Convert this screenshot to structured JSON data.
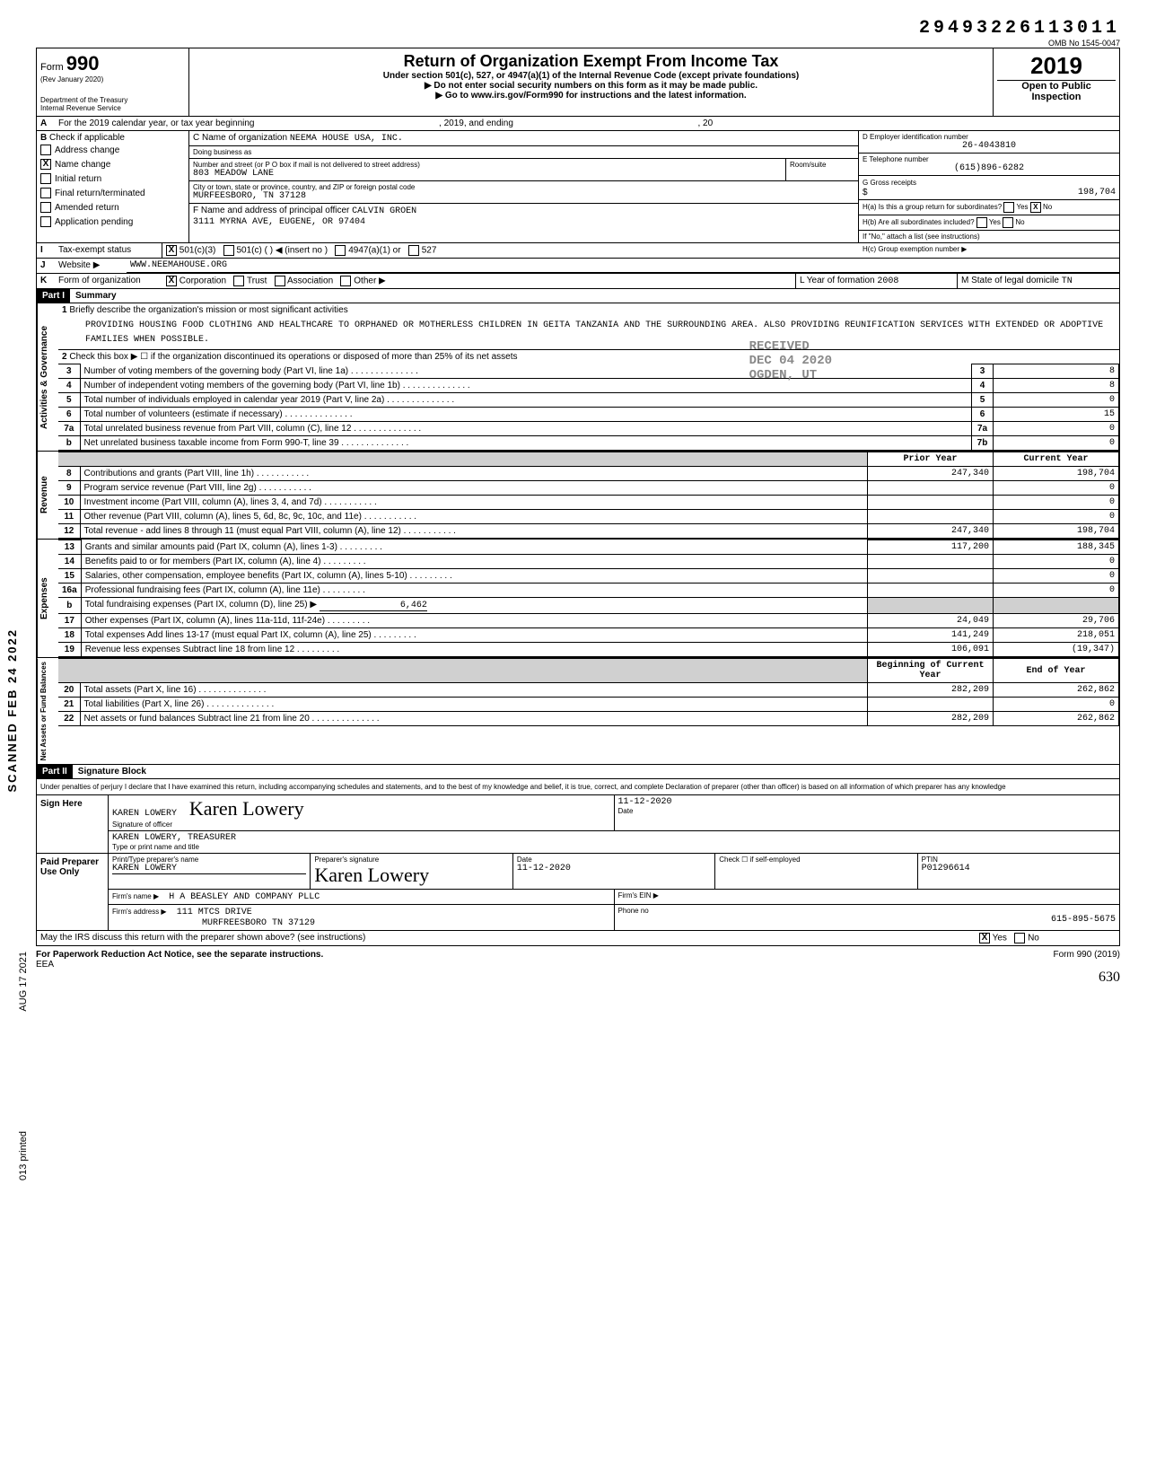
{
  "top_number": "29493226113011",
  "omb": "OMB No 1545-0047",
  "form_label": "Form",
  "form_number": "990",
  "rev": "(Rev January 2020)",
  "dept": "Department of the Treasury",
  "irs": "Internal Revenue Service",
  "main_title": "Return of Organization Exempt From Income Tax",
  "subtitle1": "Under section 501(c), 527, or 4947(a)(1) of the Internal Revenue Code (except private foundations)",
  "subtitle2": "▶ Do not enter social security numbers on this form as it may be made public.",
  "subtitle3": "▶ Go to www.irs.gov/Form990 for instructions and the latest information.",
  "year": "2019",
  "open_public": "Open to Public",
  "inspection": "Inspection",
  "A_line": "For the 2019 calendar year, or tax year beginning",
  "A_mid": ", 2019, and ending",
  "A_end": ", 20",
  "B_label": "Check if applicable",
  "B_items": [
    "Address change",
    "Name change",
    "Initial return",
    "Final return/terminated",
    "Amended return",
    "Application pending"
  ],
  "B_checked": [
    false,
    true,
    false,
    false,
    false,
    false
  ],
  "C_label": "C Name of organization",
  "C_name": "NEEMA HOUSE USA, INC.",
  "dba": "Doing business as",
  "addr_label": "Number and street (or P O box if mail is not delivered to street address)",
  "addr": "803 MEADOW LANE",
  "room": "Room/suite",
  "city_label": "City or town, state or province, country, and ZIP or foreign postal code",
  "city": "MURFEESBORO, TN 37128",
  "F_label": "F Name and address of principal officer",
  "F_name": "CALVIN GROEN",
  "F_addr": "3111 MYRNA AVE, EUGENE, OR 97404",
  "D_label": "D  Employer identification number",
  "D_val": "26-4043810",
  "E_label": "E  Telephone number",
  "E_val": "(615)896-6282",
  "G_label": "G  Gross receipts",
  "G_val": "198,704",
  "Ha_label": "H(a) Is this a group return for subordinates?",
  "Hb_label": "H(b) Are all subordinates included?",
  "H_note": "If \"No,\" attach a list (see instructions)",
  "Hc_label": "H(c)  Group exemption number  ▶",
  "I_label": "Tax-exempt status",
  "I_opts": [
    "501(c)(3)",
    "501(c) (",
    "4947(a)(1) or",
    "527"
  ],
  "I_insert": ") ◀ (insert no )",
  "J_label": "Website ▶",
  "J_val": "WWW.NEEMAHOUSE.ORG",
  "K_label": "Form of organization",
  "K_opts": [
    "Corporation",
    "Trust",
    "Association",
    "Other ▶"
  ],
  "L_label": "L  Year of formation",
  "L_val": "2008",
  "M_label": "M  State of legal domicile",
  "M_val": "TN",
  "partI": "Part I",
  "partI_title": "Summary",
  "mission_label": "Briefly describe the organization's mission or most significant activities",
  "mission": "PROVIDING HOUSING FOOD CLOTHING AND HEALTHCARE TO ORPHANED OR MOTHERLESS CHILDREN IN GEITA TANZANIA AND THE SURROUNDING AREA. ALSO PROVIDING REUNIFICATION SERVICES WITH EXTENDED OR ADOPTIVE FAMILIES WHEN POSSIBLE.",
  "line2": "Check this box ▶ ☐ if the organization discontinued its operations or disposed of more than 25% of its net assets",
  "section_labels": {
    "ag": "Activities & Governance",
    "rev": "Revenue",
    "exp": "Expenses",
    "na": "Net Assets or Fund Balances"
  },
  "gov_lines": [
    {
      "n": "3",
      "d": "Number of voting members of the governing body (Part VI, line 1a)",
      "box": "3",
      "v": "8"
    },
    {
      "n": "4",
      "d": "Number of independent voting members of the governing body (Part VI, line 1b)",
      "box": "4",
      "v": "8"
    },
    {
      "n": "5",
      "d": "Total number of individuals employed in calendar year 2019 (Part V, line 2a)",
      "box": "5",
      "v": "0"
    },
    {
      "n": "6",
      "d": "Total number of volunteers (estimate if necessary)",
      "box": "6",
      "v": "15"
    },
    {
      "n": "7a",
      "d": "Total unrelated business revenue from Part VIII, column (C), line 12",
      "box": "7a",
      "v": "0"
    },
    {
      "n": "b",
      "d": "Net unrelated business taxable income from Form 990-T, line 39",
      "box": "7b",
      "v": "0"
    }
  ],
  "col_prior": "Prior Year",
  "col_current": "Current Year",
  "rev_lines": [
    {
      "n": "8",
      "d": "Contributions and grants (Part VIII, line 1h)",
      "p": "247,340",
      "c": "198,704"
    },
    {
      "n": "9",
      "d": "Program service revenue (Part VIII, line 2g)",
      "p": "",
      "c": "0"
    },
    {
      "n": "10",
      "d": "Investment income (Part VIII, column (A), lines 3, 4, and 7d)",
      "p": "",
      "c": "0"
    },
    {
      "n": "11",
      "d": "Other revenue (Part VIII, column (A), lines 5, 6d, 8c, 9c, 10c, and 11e)",
      "p": "",
      "c": "0"
    },
    {
      "n": "12",
      "d": "Total revenue - add lines 8 through 11 (must equal Part VIII, column (A), line 12)",
      "p": "247,340",
      "c": "198,704"
    }
  ],
  "exp_lines": [
    {
      "n": "13",
      "d": "Grants and similar amounts paid (Part IX, column (A), lines 1-3)",
      "p": "117,200",
      "c": "188,345"
    },
    {
      "n": "14",
      "d": "Benefits paid to or for members (Part IX, column (A), line 4)",
      "p": "",
      "c": "0"
    },
    {
      "n": "15",
      "d": "Salaries, other compensation, employee benefits (Part IX, column (A), lines 5-10)",
      "p": "",
      "c": "0"
    },
    {
      "n": "16a",
      "d": "Professional fundraising fees (Part IX, column (A), line 11e)",
      "p": "",
      "c": "0"
    },
    {
      "n": "b",
      "d": "Total fundraising expenses (Part IX, column (D), line 25)  ▶",
      "p": "6,462",
      "c": "",
      "single": true
    },
    {
      "n": "17",
      "d": "Other expenses (Part IX, column (A), lines 11a-11d, 11f-24e)",
      "p": "24,049",
      "c": "29,706"
    },
    {
      "n": "18",
      "d": "Total expenses  Add lines 13-17 (must equal Part IX, column (A), line 25)",
      "p": "141,249",
      "c": "218,051"
    },
    {
      "n": "19",
      "d": "Revenue less expenses  Subtract line 18 from line 12",
      "p": "106,091",
      "c": "(19,347)"
    }
  ],
  "col_begin": "Beginning of Current Year",
  "col_end": "End of Year",
  "na_lines": [
    {
      "n": "20",
      "d": "Total assets (Part X, line 16)",
      "p": "282,209",
      "c": "262,862"
    },
    {
      "n": "21",
      "d": "Total liabilities (Part X, line 26)",
      "p": "",
      "c": "0"
    },
    {
      "n": "22",
      "d": "Net assets or fund balances  Subtract line 21 from line 20",
      "p": "282,209",
      "c": "262,862"
    }
  ],
  "partII": "Part II",
  "partII_title": "Signature Block",
  "perjury": "Under penalties of perjury I declare that I have examined this return, including accompanying schedules and statements, and to the best of my knowledge and belief, it is true, correct, and complete Declaration of preparer (other than officer) is based on all information of which preparer has any knowledge",
  "sign_here": "Sign Here",
  "sig_name": "KAREN LOWERY",
  "sig_cursive": "Karen Lowery",
  "sig_date": "11-12-2020",
  "sig_of_officer": "Signature of officer",
  "sig_date_lbl": "Date",
  "sig_title": "KAREN LOWERY, TREASURER",
  "sig_title_lbl": "Type or print name and title",
  "paid_label": "Paid Preparer Use Only",
  "prep_name_lbl": "Print/Type preparer's name",
  "prep_name": "Karen Lowery",
  "prep_sig_lbl": "Preparer's signature",
  "prep_sig": "Karen Lowery",
  "prep_date_lbl": "Date",
  "prep_date": "11-12-2020",
  "prep_check_lbl": "Check ☐ if self-employed",
  "ptin_lbl": "PTIN",
  "ptin": "P01296614",
  "firm_name_lbl": "Firm's name  ▶",
  "firm_name": "H A Beasley and Company PLLC",
  "firm_ein_lbl": "Firm's EIN ▶",
  "firm_addr_lbl": "Firm's address ▶",
  "firm_addr1": "111 MTCS Drive",
  "firm_addr2": "Murfreesboro TN 37129",
  "firm_phone_lbl": "Phone no",
  "firm_phone": "615-895-5675",
  "discuss": "May the IRS discuss this return with the preparer shown above? (see instructions)",
  "yes": "Yes",
  "no": "No",
  "paperwork": "For Paperwork Reduction Act Notice, see the separate instructions.",
  "formfoot": "Form 990 (2019)",
  "eea": "EEA",
  "pagenum": "630",
  "side_scanned": "SCANNED FEB 24 2022",
  "side_date": "AUG 17 2021",
  "side_printed": "013 printed",
  "stamp_received": "RECEIVED",
  "stamp_date": "DEC 04 2020",
  "stamp_ogden": "OGDEN, UT"
}
